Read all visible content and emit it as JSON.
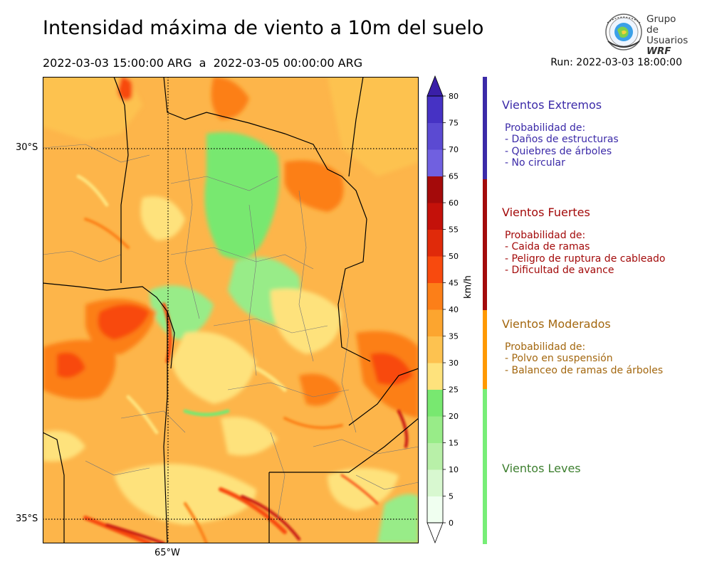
{
  "header": {
    "title": "Intensidad máxima de viento a 10m del suelo",
    "period": "2022-03-03 15:00:00 ARG  a  2022-03-05 00:00:00 ARG",
    "run": "Run: 2022-03-03 18:00:00"
  },
  "logo": {
    "line1": "Grupo de",
    "line2": "Usuarios",
    "line3": "WRF",
    "icon": "globe-seal-icon"
  },
  "map": {
    "lat_labels": [
      "30°S",
      "35°S"
    ],
    "lon_labels": [
      "65°W"
    ]
  },
  "colorbar": {
    "unit": "km/h",
    "ticks": [
      "0",
      "5",
      "10",
      "15",
      "20",
      "25",
      "30",
      "35",
      "40",
      "45",
      "50",
      "55",
      "60",
      "65",
      "70",
      "75",
      "80"
    ],
    "colors": [
      "#f0fff0",
      "#d8f8d0",
      "#b8f0a8",
      "#98ec88",
      "#78e870",
      "#fee27c",
      "#fdc250",
      "#fca52f",
      "#fc7f18",
      "#f84a0e",
      "#e02a0a",
      "#c4110a",
      "#a40a0a",
      "#7060e0",
      "#5b4ad2",
      "#4632c4",
      "#3a1fa8"
    ]
  },
  "legend": [
    {
      "title": "Vientos Extremos",
      "lines": [
        "Probabilidad de:",
        "- Daños de estructuras",
        "- Quiebres de árboles",
        "- No circular"
      ],
      "color": "#3b2aa8"
    },
    {
      "title": "Vientos Fuertes",
      "lines": [
        "Probabilidad de:",
        "- Caida de ramas",
        "- Peligro de ruptura de cableado",
        "- Dificultad de avance"
      ],
      "color": "#a30a0a"
    },
    {
      "title": "Vientos Moderados",
      "lines": [
        "Probabilidad de:",
        "- Polvo en suspensión",
        "- Balanceo de ramas de árboles"
      ],
      "color": "#a3670f"
    },
    {
      "title": "Vientos Leves",
      "lines": [],
      "color": "#3d7f2f"
    }
  ],
  "legend_bar_colors": {
    "extremos": "#3b2aa8",
    "fuertes": "#a30a0a",
    "moderados": "#ff9900",
    "leves": "#77ee77"
  }
}
